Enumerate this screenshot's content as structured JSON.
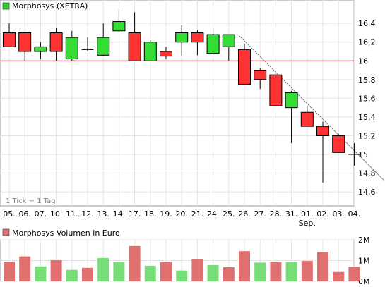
{
  "chart_data": [
    {
      "type": "candlestick",
      "legend": "Morphosys (XETRA)",
      "legend_color": "#33cc33",
      "note": "1 Tick = 1 Tag",
      "month_label": "Sep.",
      "month_label_under": "01.",
      "reference_line": 16.0,
      "ylim": [
        14.45,
        16.65
      ],
      "y_ticks": [
        14.6,
        14.8,
        15.0,
        15.2,
        15.4,
        15.6,
        15.8,
        16.0,
        16.2,
        16.4
      ],
      "y_tick_labels": [
        "14,6",
        "14,8",
        "15",
        "15,2",
        "15,4",
        "15,6",
        "15,8",
        "16",
        "16,2",
        "16,4"
      ],
      "colors": {
        "up": "#33dd33",
        "down": "#ff3333",
        "grid": "#e4e4e4",
        "frame": "#999999",
        "reference": "#cc3333",
        "trend": "#888888"
      },
      "categories": [
        "05.",
        "06.",
        "07.",
        "10.",
        "11.",
        "12.",
        "13.",
        "14.",
        "17.",
        "18.",
        "19.",
        "20.",
        "21.",
        "24.",
        "25.",
        "26.",
        "27.",
        "28.",
        "31.",
        "01.",
        "02.",
        "03.",
        "04."
      ],
      "candles": [
        {
          "open": 16.3,
          "high": 16.4,
          "low": 16.15,
          "close": 16.15
        },
        {
          "open": 16.3,
          "high": 16.3,
          "low": 16.0,
          "close": 16.1
        },
        {
          "open": 16.1,
          "high": 16.2,
          "low": 16.02,
          "close": 16.15
        },
        {
          "open": 16.3,
          "high": 16.35,
          "low": 16.0,
          "close": 16.1
        },
        {
          "open": 16.02,
          "high": 16.32,
          "low": 16.0,
          "close": 16.25
        },
        {
          "open": 16.12,
          "high": 16.25,
          "low": 16.1,
          "close": 16.12
        },
        {
          "open": 16.06,
          "high": 16.4,
          "low": 16.05,
          "close": 16.25
        },
        {
          "open": 16.32,
          "high": 16.55,
          "low": 16.3,
          "close": 16.42
        },
        {
          "open": 16.3,
          "high": 16.52,
          "low": 16.0,
          "close": 16.0
        },
        {
          "open": 16.0,
          "high": 16.22,
          "low": 16.0,
          "close": 16.2
        },
        {
          "open": 16.1,
          "high": 16.15,
          "low": 16.02,
          "close": 16.05
        },
        {
          "open": 16.2,
          "high": 16.38,
          "low": 16.05,
          "close": 16.3
        },
        {
          "open": 16.3,
          "high": 16.33,
          "low": 16.06,
          "close": 16.2
        },
        {
          "open": 16.08,
          "high": 16.35,
          "low": 16.06,
          "close": 16.28
        },
        {
          "open": 16.15,
          "high": 16.28,
          "low": 16.0,
          "close": 16.28
        },
        {
          "open": 16.12,
          "high": 16.18,
          "low": 15.75,
          "close": 15.75
        },
        {
          "open": 15.9,
          "high": 15.92,
          "low": 15.7,
          "close": 15.8
        },
        {
          "open": 15.85,
          "high": 15.87,
          "low": 15.52,
          "close": 15.52
        },
        {
          "open": 15.5,
          "high": 15.68,
          "low": 15.12,
          "close": 15.66
        },
        {
          "open": 15.45,
          "high": 15.52,
          "low": 15.3,
          "close": 15.3
        },
        {
          "open": 15.3,
          "high": 15.35,
          "low": 14.7,
          "close": 15.2
        },
        {
          "open": 15.2,
          "high": 15.22,
          "low": 15.02,
          "close": 15.02
        },
        {
          "open": 15.0,
          "high": 15.12,
          "low": 14.88,
          "close": 15.0
        }
      ],
      "trendline": [
        {
          "index": 14.6,
          "value": 16.28
        },
        {
          "index": 24.0,
          "value": 14.72
        }
      ]
    },
    {
      "type": "bar",
      "legend": "Morphosys Volumen in Euro",
      "legend_color": "#e07070",
      "ylim": [
        0,
        2
      ],
      "y_ticks": [
        0,
        1,
        2
      ],
      "y_tick_labels": [
        "0M",
        "1M",
        "2M"
      ],
      "colors": {
        "up": "#77dd77",
        "down": "#e07070"
      },
      "categories": [
        "05.",
        "06.",
        "07.",
        "10.",
        "11.",
        "12.",
        "13.",
        "14.",
        "17.",
        "18.",
        "19.",
        "20.",
        "21.",
        "24.",
        "25.",
        "26.",
        "27.",
        "28.",
        "31.",
        "01.",
        "02.",
        "03.",
        "04."
      ],
      "values": [
        0.95,
        1.2,
        0.72,
        1.02,
        0.55,
        0.65,
        1.12,
        0.92,
        1.7,
        0.75,
        0.92,
        0.52,
        1.05,
        0.78,
        0.68,
        1.45,
        0.9,
        0.92,
        0.92,
        0.98,
        1.42,
        0.45,
        0.7
      ],
      "direction": [
        "down",
        "down",
        "up",
        "down",
        "up",
        "down",
        "up",
        "up",
        "down",
        "up",
        "down",
        "up",
        "down",
        "up",
        "down",
        "down",
        "up",
        "down",
        "up",
        "down",
        "down",
        "down",
        "down"
      ]
    }
  ]
}
